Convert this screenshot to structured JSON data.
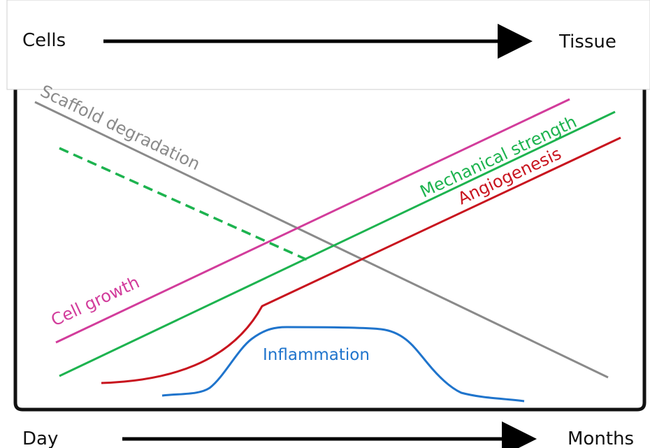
{
  "top_axis": {
    "start_label": "Cells",
    "end_label": "Tissue"
  },
  "bottom_axis": {
    "start_label": "Day",
    "end_label": "Months"
  },
  "curves": {
    "scaffold_degradation": {
      "label": "Scaffold degradation",
      "color": "#888888"
    },
    "mechanical_strength": {
      "label": "Mechanical strength",
      "color": "#1db34f"
    },
    "angiogenesis": {
      "label": "Angiogenesis",
      "color": "#c8141e"
    },
    "cell_growth": {
      "label": "Cell growth",
      "color": "#d23c9b"
    },
    "inflammation": {
      "label": "Inflammation",
      "color": "#1f74cc"
    }
  }
}
